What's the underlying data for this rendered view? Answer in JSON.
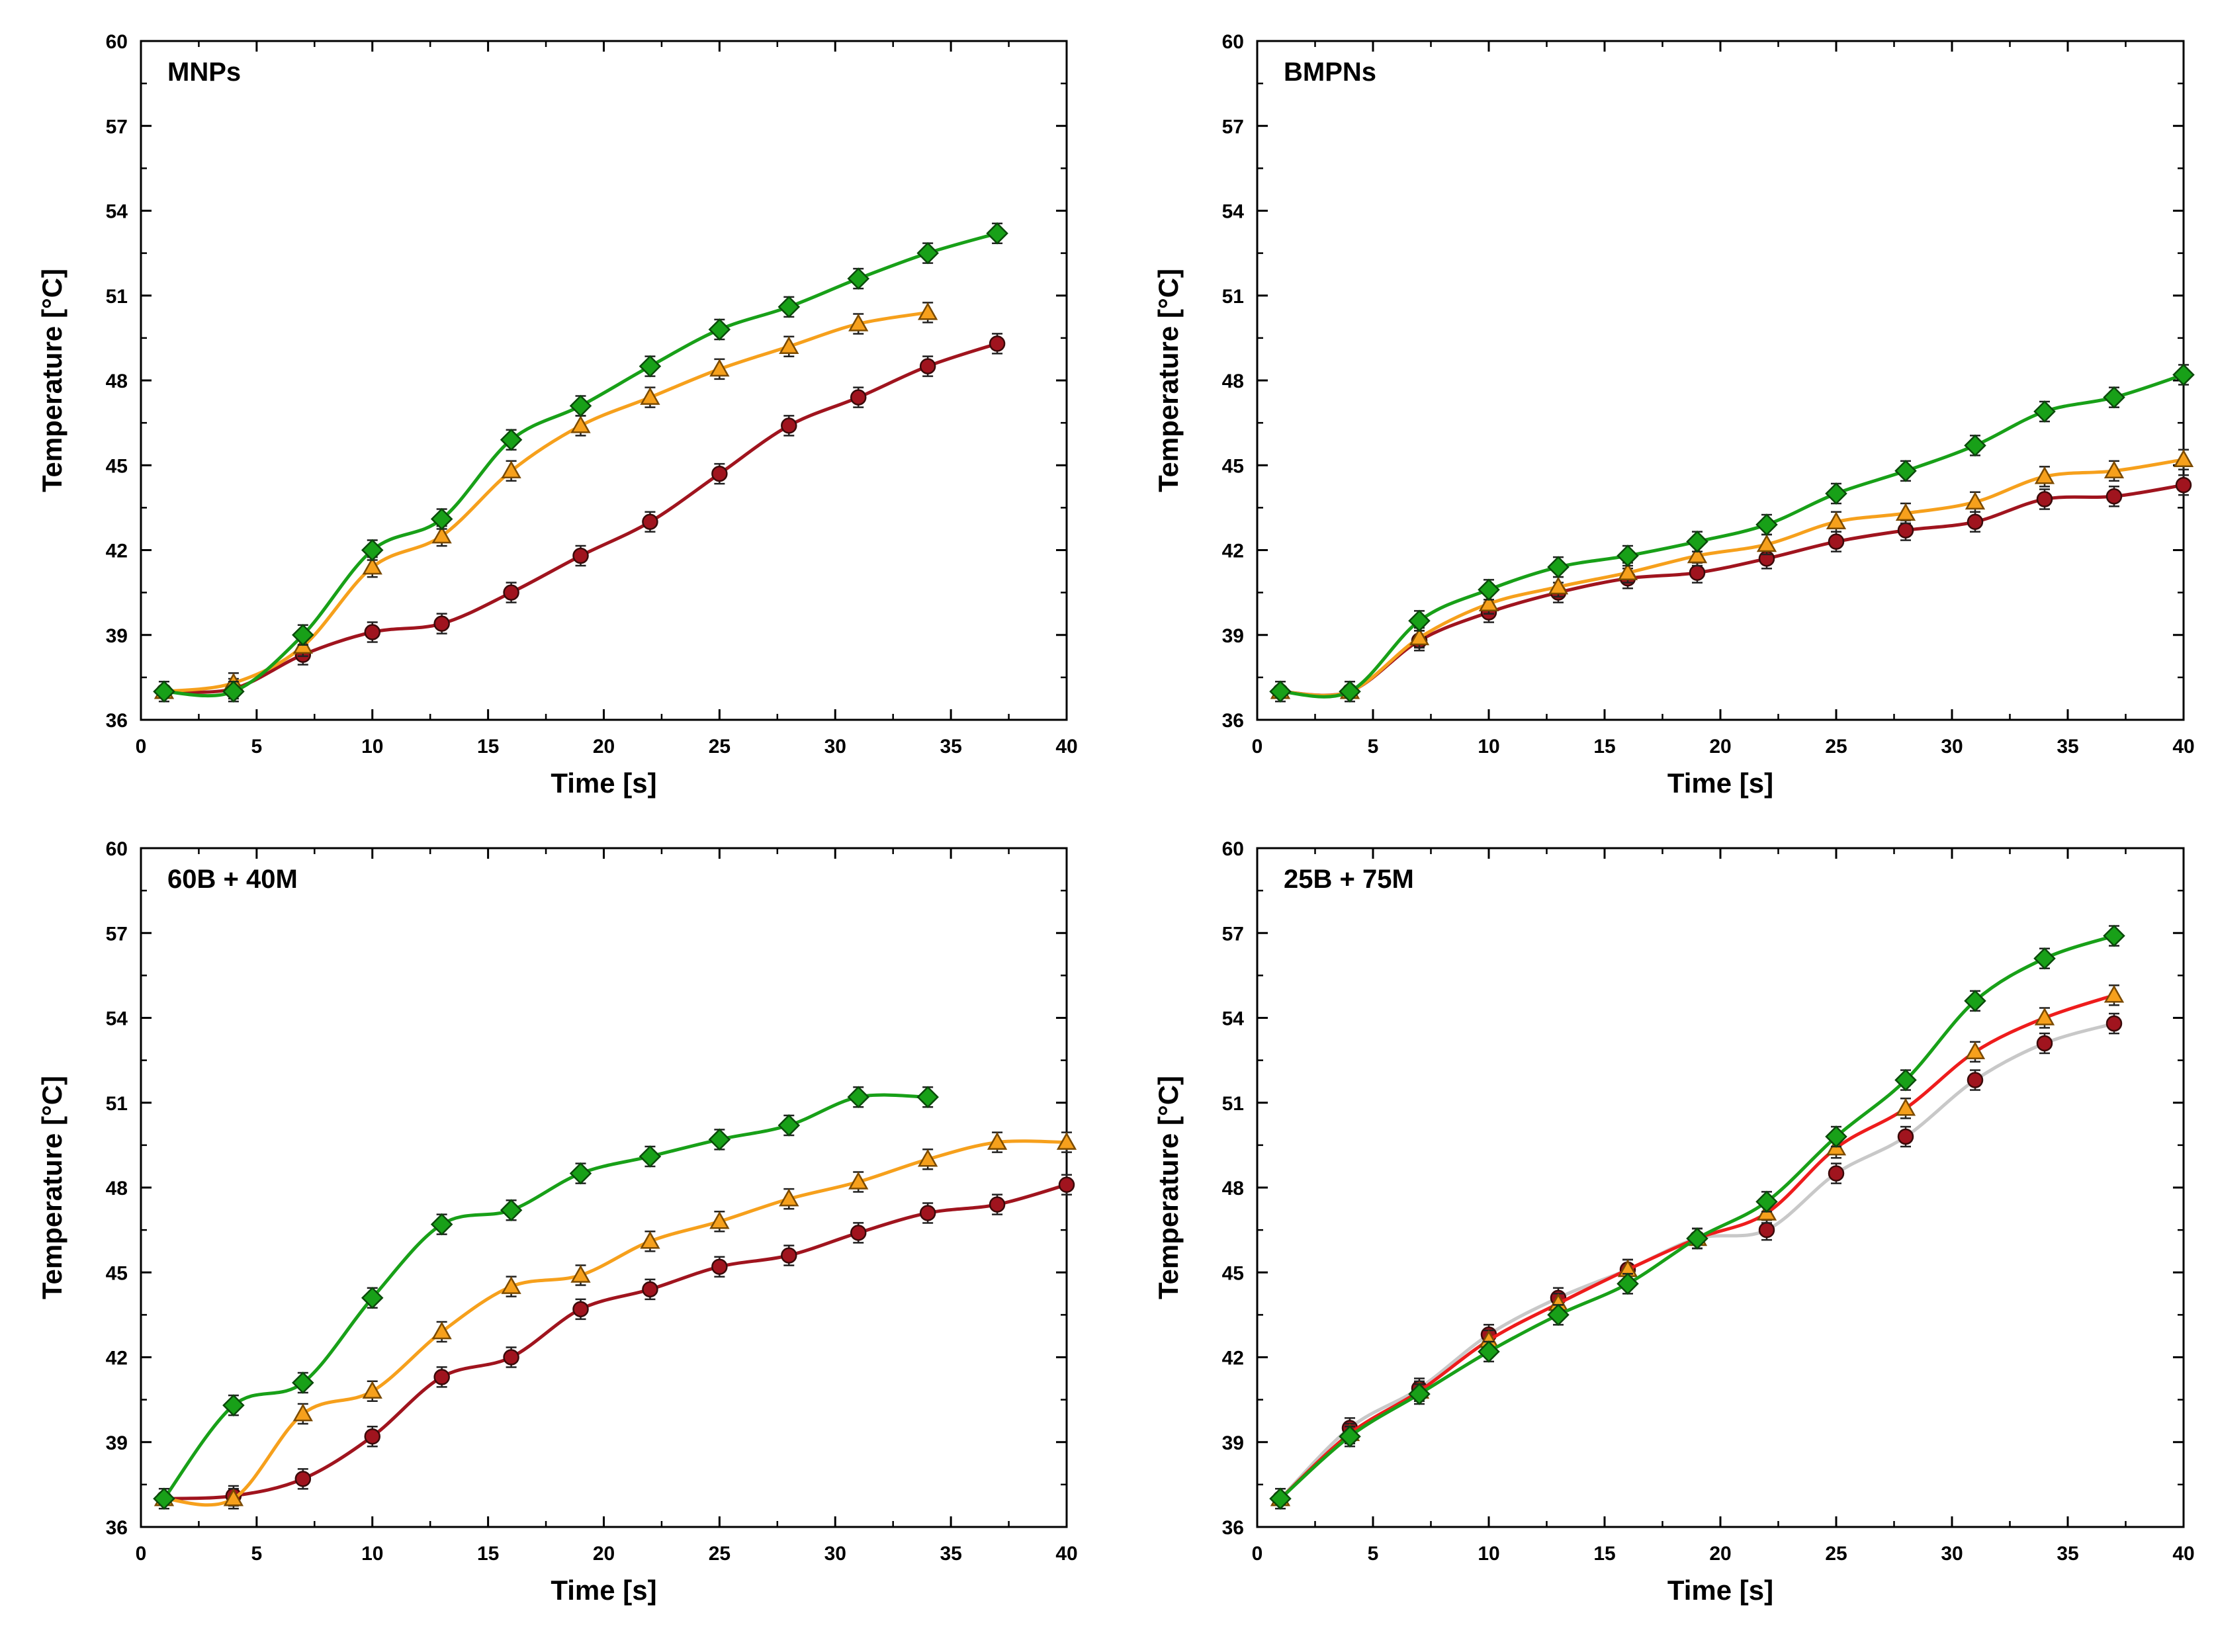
{
  "colors": {
    "green": "#18a018",
    "orange": "#f6a01c",
    "darkred": "#a0141e",
    "red": "#ee1c1c",
    "lightgray": "#c8c8c8",
    "axis": "#000000"
  },
  "chart_data": [
    {
      "type": "line",
      "title": "MNPs",
      "xlabel": "Time [s]",
      "ylabel": "Temperature [°C]",
      "xlim": [
        0,
        40
      ],
      "ylim": [
        36,
        60
      ],
      "xticks": [
        0,
        5,
        10,
        15,
        20,
        25,
        30,
        35,
        40
      ],
      "yticks": [
        36,
        39,
        42,
        45,
        48,
        51,
        54,
        57,
        60
      ],
      "grid": false,
      "series": [
        {
          "marker": "circle",
          "color_key": "darkred",
          "line_color_key": "darkred",
          "x": [
            1,
            4,
            7,
            10,
            13,
            16,
            19,
            22,
            25,
            28,
            31,
            34,
            37
          ],
          "y": [
            37.0,
            37.1,
            38.3,
            39.1,
            39.4,
            40.5,
            41.8,
            43.0,
            44.7,
            46.4,
            47.4,
            48.5,
            49.3
          ]
        },
        {
          "marker": "triangle",
          "color_key": "orange",
          "line_color_key": "orange",
          "x": [
            1,
            4,
            7,
            10,
            13,
            16,
            19,
            22,
            25,
            28,
            31,
            34
          ],
          "y": [
            37.0,
            37.3,
            38.6,
            41.4,
            42.5,
            44.8,
            46.4,
            47.4,
            48.4,
            49.2,
            50.0,
            50.4
          ]
        },
        {
          "marker": "diamond",
          "color_key": "green",
          "line_color_key": "green",
          "x": [
            1,
            4,
            7,
            10,
            13,
            16,
            19,
            22,
            25,
            28,
            31,
            34,
            37
          ],
          "y": [
            37.0,
            37.0,
            39.0,
            42.0,
            43.1,
            45.9,
            47.1,
            48.5,
            49.8,
            50.6,
            51.6,
            52.5,
            53.2
          ]
        }
      ]
    },
    {
      "type": "line",
      "title": "BMPNs",
      "xlabel": "Time [s]",
      "ylabel": "Temperature [°C]",
      "xlim": [
        0,
        40
      ],
      "ylim": [
        36,
        60
      ],
      "xticks": [
        0,
        5,
        10,
        15,
        20,
        25,
        30,
        35,
        40
      ],
      "yticks": [
        36,
        39,
        42,
        45,
        48,
        51,
        54,
        57,
        60
      ],
      "grid": false,
      "series": [
        {
          "marker": "circle",
          "color_key": "darkred",
          "line_color_key": "darkred",
          "x": [
            1,
            4,
            7,
            10,
            13,
            16,
            19,
            22,
            25,
            28,
            31,
            34,
            37,
            40
          ],
          "y": [
            37.0,
            37.0,
            38.8,
            39.8,
            40.5,
            41.0,
            41.2,
            41.7,
            42.3,
            42.7,
            43.0,
            43.8,
            43.9,
            44.3
          ]
        },
        {
          "marker": "triangle",
          "color_key": "orange",
          "line_color_key": "orange",
          "x": [
            1,
            4,
            7,
            10,
            13,
            16,
            19,
            22,
            25,
            28,
            31,
            34,
            37,
            40
          ],
          "y": [
            37.0,
            37.0,
            38.9,
            40.1,
            40.7,
            41.2,
            41.8,
            42.2,
            43.0,
            43.3,
            43.7,
            44.6,
            44.8,
            45.2
          ]
        },
        {
          "marker": "diamond",
          "color_key": "green",
          "line_color_key": "green",
          "x": [
            1,
            4,
            7,
            10,
            13,
            16,
            19,
            22,
            25,
            28,
            31,
            34,
            37,
            40
          ],
          "y": [
            37.0,
            37.0,
            39.5,
            40.6,
            41.4,
            41.8,
            42.3,
            42.9,
            44.0,
            44.8,
            45.7,
            46.9,
            47.4,
            48.2
          ]
        }
      ]
    },
    {
      "type": "line",
      "title": "60B + 40M",
      "xlabel": "Time [s]",
      "ylabel": "Temperature [°C]",
      "xlim": [
        0,
        40
      ],
      "ylim": [
        36,
        60
      ],
      "xticks": [
        0,
        5,
        10,
        15,
        20,
        25,
        30,
        35,
        40
      ],
      "yticks": [
        36,
        39,
        42,
        45,
        48,
        51,
        54,
        57,
        60
      ],
      "grid": false,
      "series": [
        {
          "marker": "circle",
          "color_key": "darkred",
          "line_color_key": "darkred",
          "x": [
            1,
            4,
            7,
            10,
            13,
            16,
            19,
            22,
            25,
            28,
            31,
            34,
            37,
            40
          ],
          "y": [
            37.0,
            37.1,
            37.7,
            39.2,
            41.3,
            42.0,
            43.7,
            44.4,
            45.2,
            45.6,
            46.4,
            47.1,
            47.4,
            48.1
          ]
        },
        {
          "marker": "triangle",
          "color_key": "orange",
          "line_color_key": "orange",
          "x": [
            1,
            4,
            7,
            10,
            13,
            16,
            19,
            22,
            25,
            28,
            31,
            34,
            37,
            40
          ],
          "y": [
            37.0,
            37.0,
            40.0,
            40.8,
            42.9,
            44.5,
            44.9,
            46.1,
            46.8,
            47.6,
            48.2,
            49.0,
            49.6,
            49.6
          ]
        },
        {
          "marker": "diamond",
          "color_key": "green",
          "line_color_key": "green",
          "x": [
            1,
            4,
            7,
            10,
            13,
            16,
            19,
            22,
            25,
            28,
            31,
            34
          ],
          "y": [
            37.0,
            40.3,
            41.1,
            44.1,
            46.7,
            47.2,
            48.5,
            49.1,
            49.7,
            50.2,
            51.2,
            51.2
          ]
        }
      ]
    },
    {
      "type": "line",
      "title": "25B + 75M",
      "xlabel": "Time [s]",
      "ylabel": "Temperature [°C]",
      "xlim": [
        0,
        40
      ],
      "ylim": [
        36,
        60
      ],
      "xticks": [
        0,
        5,
        10,
        15,
        20,
        25,
        30,
        35,
        40
      ],
      "yticks": [
        36,
        39,
        42,
        45,
        48,
        51,
        54,
        57,
        60
      ],
      "grid": false,
      "series": [
        {
          "marker": "circle",
          "color_key": "darkred",
          "line_color_key": "lightgray",
          "x": [
            1,
            4,
            7,
            10,
            13,
            16,
            19,
            22,
            25,
            28,
            31,
            34,
            37
          ],
          "y": [
            37.0,
            39.5,
            40.9,
            42.8,
            44.1,
            45.1,
            46.2,
            46.5,
            48.5,
            49.8,
            51.8,
            53.1,
            53.8
          ]
        },
        {
          "marker": "triangle",
          "color_key": "orange",
          "line_color_key": "red",
          "x": [
            1,
            4,
            7,
            10,
            13,
            16,
            19,
            22,
            25,
            28,
            31,
            34,
            37
          ],
          "y": [
            37.0,
            39.3,
            40.8,
            42.6,
            43.9,
            45.1,
            46.2,
            47.1,
            49.4,
            50.8,
            52.8,
            54.0,
            54.8
          ]
        },
        {
          "marker": "diamond",
          "color_key": "green",
          "line_color_key": "green",
          "x": [
            1,
            4,
            7,
            10,
            13,
            16,
            19,
            22,
            25,
            28,
            31,
            34,
            37
          ],
          "y": [
            37.0,
            39.2,
            40.7,
            42.2,
            43.5,
            44.6,
            46.2,
            47.5,
            49.8,
            51.8,
            54.6,
            56.1,
            56.9
          ]
        }
      ]
    }
  ]
}
